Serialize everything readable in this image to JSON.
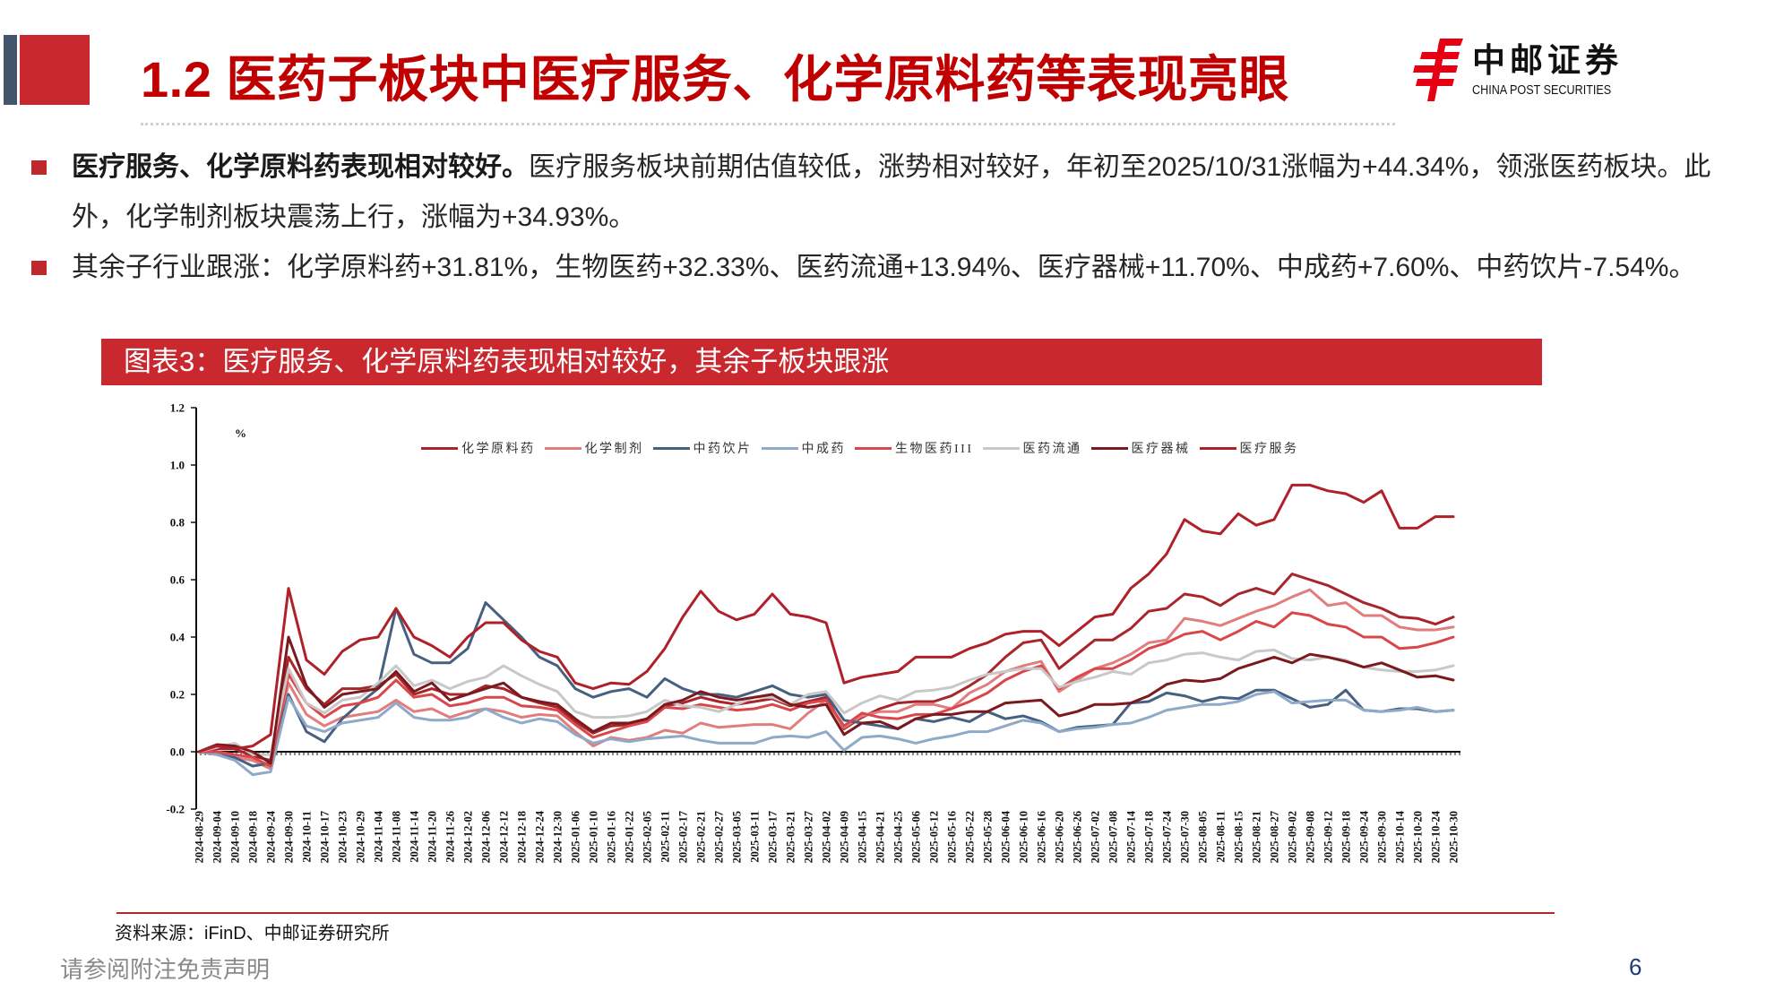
{
  "slide": {
    "section_title": "1.2 医药子板块中医疗服务、化学原料药等表现亮眼",
    "logo": {
      "icon": "china-post-emblem-icon",
      "name_cn": "中邮证券",
      "name_en": "CHINA POST SECURITIES"
    },
    "bullets": [
      {
        "lead": "医疗服务、化学原料药表现相对较好。",
        "text": "医疗服务板块前期估值较低，涨势相对较好，年初至2025/10/31涨幅为+44.34%，领涨医药板块。此外，化学制剂板块震荡上行，涨幅为+34.93%。"
      },
      {
        "lead": "",
        "text": "其余子行业跟涨：化学原料药+31.81%，生物医药+32.33%、医药流通+13.94%、医疗器械+11.70%、中成药+7.60%、中药饮片-7.54%。"
      }
    ],
    "figure_title": "图表3：医疗服务、化学原料药表现相对较好，其余子板块跟涨",
    "source": "资料来源：iFinD、中邮证券研究所",
    "disclaimer": "请参阅附注免责声明",
    "page_number": "6"
  },
  "colors": {
    "brand_red": "#c9292e",
    "title_red": "#c00000",
    "slate": "#44546a",
    "logo_red": "#e60012",
    "page_number": "#1f3a7a"
  },
  "chart_data": {
    "type": "line",
    "title": "",
    "xlabel": "",
    "ylabel": "%",
    "ylim": [
      -0.2,
      1.2
    ],
    "y_ticks": [
      1.2,
      1.0,
      0.8,
      0.6,
      0.4,
      0.2,
      0.0,
      -0.2
    ],
    "y_tick_labels": [
      "1.2",
      "1.0",
      "0.8",
      "0.6",
      "0.4",
      "0.2",
      "0.0",
      "-0.2"
    ],
    "grid": false,
    "legend_position": "top",
    "categories": [
      "2024-08-29",
      "2024-09-04",
      "2024-09-10",
      "2024-09-18",
      "2024-09-24",
      "2024-09-30",
      "2024-10-11",
      "2024-10-17",
      "2024-10-23",
      "2024-10-29",
      "2024-11-04",
      "2024-11-08",
      "2024-11-14",
      "2024-11-20",
      "2024-11-26",
      "2024-12-02",
      "2024-12-06",
      "2024-12-12",
      "2024-12-18",
      "2024-12-24",
      "2024-12-30",
      "2025-01-06",
      "2025-01-10",
      "2025-01-16",
      "2025-01-22",
      "2025-02-05",
      "2025-02-11",
      "2025-02-17",
      "2025-02-21",
      "2025-02-27",
      "2025-03-05",
      "2025-03-11",
      "2025-03-17",
      "2025-03-21",
      "2025-03-27",
      "2025-04-02",
      "2025-04-09",
      "2025-04-15",
      "2025-04-21",
      "2025-04-25",
      "2025-05-06",
      "2025-05-12",
      "2025-05-16",
      "2025-05-22",
      "2025-05-28",
      "2025-06-04",
      "2025-06-10",
      "2025-06-16",
      "2025-06-20",
      "2025-06-26",
      "2025-07-02",
      "2025-07-08",
      "2025-07-14",
      "2025-07-18",
      "2025-07-24",
      "2025-07-30",
      "2025-08-05",
      "2025-08-11",
      "2025-08-15",
      "2025-08-21",
      "2025-08-27",
      "2025-09-02",
      "2025-09-08",
      "2025-09-12",
      "2025-09-18",
      "2025-09-24",
      "2025-09-30",
      "2025-10-14",
      "2025-10-20",
      "2025-10-24",
      "2025-10-30"
    ],
    "series": [
      {
        "name": "化学原料药",
        "color": "#a8262b",
        "values": [
          0.0,
          0.01,
          0.01,
          -0.015,
          -0.03,
          0.33,
          0.22,
          0.165,
          0.22,
          0.22,
          0.23,
          0.27,
          0.2,
          0.22,
          0.2,
          0.2,
          0.23,
          0.22,
          0.19,
          0.17,
          0.155,
          0.105,
          0.065,
          0.09,
          0.095,
          0.11,
          0.16,
          0.17,
          0.19,
          0.175,
          0.165,
          0.175,
          0.185,
          0.16,
          0.175,
          0.19,
          0.08,
          0.12,
          0.15,
          0.17,
          0.175,
          0.175,
          0.195,
          0.23,
          0.27,
          0.33,
          0.38,
          0.39,
          0.29,
          0.34,
          0.39,
          0.39,
          0.43,
          0.49,
          0.5,
          0.55,
          0.54,
          0.51,
          0.55,
          0.57,
          0.55,
          0.62,
          0.6,
          0.58,
          0.55,
          0.52,
          0.5,
          0.47,
          0.465,
          0.445,
          0.47
        ]
      },
      {
        "name": "化学制剂",
        "color": "#e27d7d",
        "values": [
          0.0,
          -0.01,
          -0.02,
          -0.03,
          -0.06,
          0.24,
          0.13,
          0.09,
          0.12,
          0.13,
          0.14,
          0.18,
          0.14,
          0.15,
          0.12,
          0.14,
          0.15,
          0.14,
          0.12,
          0.13,
          0.125,
          0.07,
          0.02,
          0.05,
          0.04,
          0.05,
          0.075,
          0.065,
          0.1,
          0.085,
          0.09,
          0.095,
          0.095,
          0.08,
          0.135,
          0.18,
          0.085,
          0.125,
          0.14,
          0.14,
          0.165,
          0.165,
          0.15,
          0.205,
          0.235,
          0.28,
          0.3,
          0.315,
          0.21,
          0.25,
          0.29,
          0.31,
          0.34,
          0.38,
          0.39,
          0.465,
          0.455,
          0.44,
          0.465,
          0.49,
          0.51,
          0.54,
          0.565,
          0.51,
          0.52,
          0.475,
          0.475,
          0.435,
          0.425,
          0.425,
          0.435
        ]
      },
      {
        "name": "中药饮片",
        "color": "#476080",
        "values": [
          0.0,
          -0.01,
          -0.02,
          -0.05,
          -0.04,
          0.2,
          0.07,
          0.035,
          0.115,
          0.17,
          0.22,
          0.5,
          0.34,
          0.31,
          0.31,
          0.36,
          0.52,
          0.46,
          0.4,
          0.33,
          0.3,
          0.22,
          0.19,
          0.21,
          0.22,
          0.19,
          0.255,
          0.22,
          0.2,
          0.2,
          0.19,
          0.21,
          0.23,
          0.2,
          0.19,
          0.2,
          0.11,
          0.1,
          0.09,
          0.08,
          0.115,
          0.105,
          0.12,
          0.105,
          0.14,
          0.115,
          0.125,
          0.105,
          0.07,
          0.085,
          0.09,
          0.095,
          0.17,
          0.175,
          0.205,
          0.195,
          0.175,
          0.19,
          0.185,
          0.215,
          0.215,
          0.185,
          0.155,
          0.165,
          0.215,
          0.145,
          0.14,
          0.15,
          0.15,
          0.14,
          0.145
        ]
      },
      {
        "name": "中成药",
        "color": "#8eaac8",
        "values": [
          0.0,
          -0.01,
          -0.03,
          -0.08,
          -0.07,
          0.19,
          0.09,
          0.07,
          0.1,
          0.11,
          0.12,
          0.17,
          0.12,
          0.11,
          0.11,
          0.12,
          0.15,
          0.12,
          0.1,
          0.115,
          0.105,
          0.06,
          0.03,
          0.045,
          0.035,
          0.045,
          0.05,
          0.055,
          0.04,
          0.03,
          0.03,
          0.03,
          0.05,
          0.055,
          0.05,
          0.07,
          0.005,
          0.05,
          0.055,
          0.045,
          0.03,
          0.045,
          0.055,
          0.07,
          0.07,
          0.09,
          0.11,
          0.1,
          0.07,
          0.08,
          0.085,
          0.095,
          0.1,
          0.12,
          0.145,
          0.155,
          0.165,
          0.165,
          0.175,
          0.2,
          0.21,
          0.17,
          0.175,
          0.18,
          0.18,
          0.145,
          0.14,
          0.145,
          0.155,
          0.14,
          0.145
        ]
      },
      {
        "name": "生物医药III",
        "color": "#d9474b",
        "values": [
          0.0,
          0.0,
          -0.01,
          -0.02,
          -0.05,
          0.27,
          0.17,
          0.12,
          0.16,
          0.17,
          0.19,
          0.25,
          0.19,
          0.2,
          0.16,
          0.17,
          0.19,
          0.19,
          0.16,
          0.155,
          0.145,
          0.095,
          0.05,
          0.07,
          0.09,
          0.105,
          0.155,
          0.15,
          0.165,
          0.155,
          0.145,
          0.15,
          0.165,
          0.145,
          0.17,
          0.18,
          0.09,
          0.135,
          0.12,
          0.115,
          0.13,
          0.13,
          0.15,
          0.175,
          0.205,
          0.25,
          0.28,
          0.3,
          0.22,
          0.26,
          0.29,
          0.29,
          0.32,
          0.36,
          0.38,
          0.41,
          0.42,
          0.39,
          0.42,
          0.455,
          0.435,
          0.485,
          0.475,
          0.445,
          0.435,
          0.4,
          0.4,
          0.36,
          0.365,
          0.38,
          0.4
        ]
      },
      {
        "name": "医药流通",
        "color": "#c8c8c8",
        "values": [
          0.0,
          0.015,
          0.03,
          -0.01,
          -0.01,
          0.29,
          0.17,
          0.135,
          0.18,
          0.19,
          0.24,
          0.3,
          0.23,
          0.25,
          0.22,
          0.245,
          0.26,
          0.3,
          0.265,
          0.235,
          0.21,
          0.14,
          0.12,
          0.12,
          0.125,
          0.14,
          0.18,
          0.16,
          0.155,
          0.14,
          0.165,
          0.19,
          0.19,
          0.165,
          0.2,
          0.21,
          0.135,
          0.17,
          0.195,
          0.18,
          0.21,
          0.215,
          0.225,
          0.25,
          0.27,
          0.28,
          0.29,
          0.29,
          0.225,
          0.245,
          0.26,
          0.28,
          0.27,
          0.31,
          0.32,
          0.34,
          0.345,
          0.33,
          0.32,
          0.35,
          0.355,
          0.325,
          0.32,
          0.33,
          0.32,
          0.295,
          0.285,
          0.28,
          0.28,
          0.285,
          0.3
        ]
      },
      {
        "name": "医疗器械",
        "color": "#7a1a1e",
        "values": [
          0.0,
          0.025,
          0.02,
          0.0,
          -0.04,
          0.4,
          0.23,
          0.155,
          0.2,
          0.21,
          0.22,
          0.28,
          0.21,
          0.24,
          0.18,
          0.2,
          0.22,
          0.24,
          0.19,
          0.175,
          0.165,
          0.115,
          0.07,
          0.1,
          0.1,
          0.115,
          0.165,
          0.18,
          0.21,
          0.19,
          0.18,
          0.19,
          0.2,
          0.165,
          0.155,
          0.165,
          0.06,
          0.1,
          0.105,
          0.08,
          0.115,
          0.13,
          0.13,
          0.14,
          0.14,
          0.17,
          0.175,
          0.18,
          0.125,
          0.14,
          0.165,
          0.165,
          0.17,
          0.195,
          0.235,
          0.25,
          0.245,
          0.255,
          0.29,
          0.31,
          0.33,
          0.31,
          0.34,
          0.33,
          0.315,
          0.295,
          0.31,
          0.285,
          0.26,
          0.265,
          0.25
        ]
      },
      {
        "name": "医疗服务",
        "color": "#b02028",
        "values": [
          0.0,
          0.02,
          0.01,
          0.02,
          0.06,
          0.57,
          0.32,
          0.27,
          0.35,
          0.39,
          0.4,
          0.5,
          0.4,
          0.37,
          0.33,
          0.4,
          0.45,
          0.45,
          0.39,
          0.35,
          0.33,
          0.24,
          0.22,
          0.24,
          0.235,
          0.28,
          0.36,
          0.47,
          0.56,
          0.49,
          0.46,
          0.48,
          0.55,
          0.48,
          0.47,
          0.45,
          0.24,
          0.26,
          0.27,
          0.28,
          0.33,
          0.33,
          0.33,
          0.36,
          0.38,
          0.41,
          0.42,
          0.42,
          0.37,
          0.42,
          0.47,
          0.48,
          0.57,
          0.62,
          0.69,
          0.81,
          0.77,
          0.76,
          0.83,
          0.79,
          0.81,
          0.93,
          0.93,
          0.91,
          0.9,
          0.87,
          0.91,
          0.78,
          0.78,
          0.82,
          0.82
        ]
      }
    ]
  }
}
